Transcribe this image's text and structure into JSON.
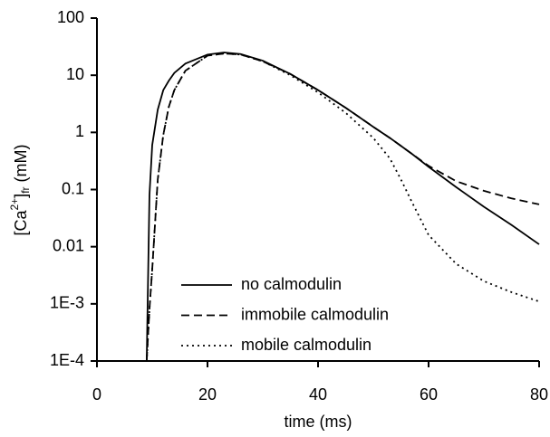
{
  "chart_data": {
    "type": "line",
    "xlabel": "time (ms)",
    "ylabel": [
      "[Ca",
      "2+",
      "]",
      "fr",
      " (mM)"
    ],
    "x": [
      0,
      9,
      9.5,
      10,
      11,
      12,
      13,
      14,
      16,
      20,
      23,
      26,
      30,
      35,
      40,
      45,
      50,
      53,
      55,
      57,
      60,
      65,
      70,
      75,
      80
    ],
    "series": [
      {
        "name": "no calmodulin",
        "color": "#000000",
        "linestyle": "solid",
        "values": [
          0.0001,
          0.0001,
          0.08,
          0.6,
          2.5,
          5.5,
          8,
          11,
          16,
          23,
          25,
          23.5,
          18,
          10.5,
          5.5,
          2.7,
          1.25,
          0.8,
          0.58,
          0.42,
          0.25,
          0.11,
          0.05,
          0.024,
          0.011
        ]
      },
      {
        "name": "immobile calmodulin",
        "color": "#000000",
        "linestyle": "dashed",
        "values": [
          0.0001,
          0.0001,
          0.0008,
          0.004,
          0.15,
          0.9,
          2.8,
          5.5,
          12,
          22,
          24,
          23,
          17.5,
          10.5,
          5.5,
          2.7,
          1.25,
          0.8,
          0.58,
          0.42,
          0.26,
          0.14,
          0.095,
          0.07,
          0.055
        ]
      },
      {
        "name": "mobile calmodulin",
        "color": "#000000",
        "linestyle": "dotted",
        "values": [
          0.0001,
          0.0001,
          0.0008,
          0.004,
          0.15,
          0.9,
          2.8,
          5.5,
          12,
          22,
          24,
          23,
          17.5,
          10,
          5,
          2.2,
          0.8,
          0.35,
          0.15,
          0.06,
          0.016,
          0.005,
          0.0025,
          0.0016,
          0.0011
        ]
      }
    ],
    "xlim": [
      0,
      80
    ],
    "xticks": [
      0,
      20,
      40,
      60,
      80
    ],
    "ylim": [
      0.0001,
      100
    ],
    "log_y": true,
    "yticks": [
      {
        "value": 0.0001,
        "label": "1E-4"
      },
      {
        "value": 0.001,
        "label": "1E-3"
      },
      0.01,
      0.1,
      1,
      10,
      100
    ],
    "grid": false
  }
}
